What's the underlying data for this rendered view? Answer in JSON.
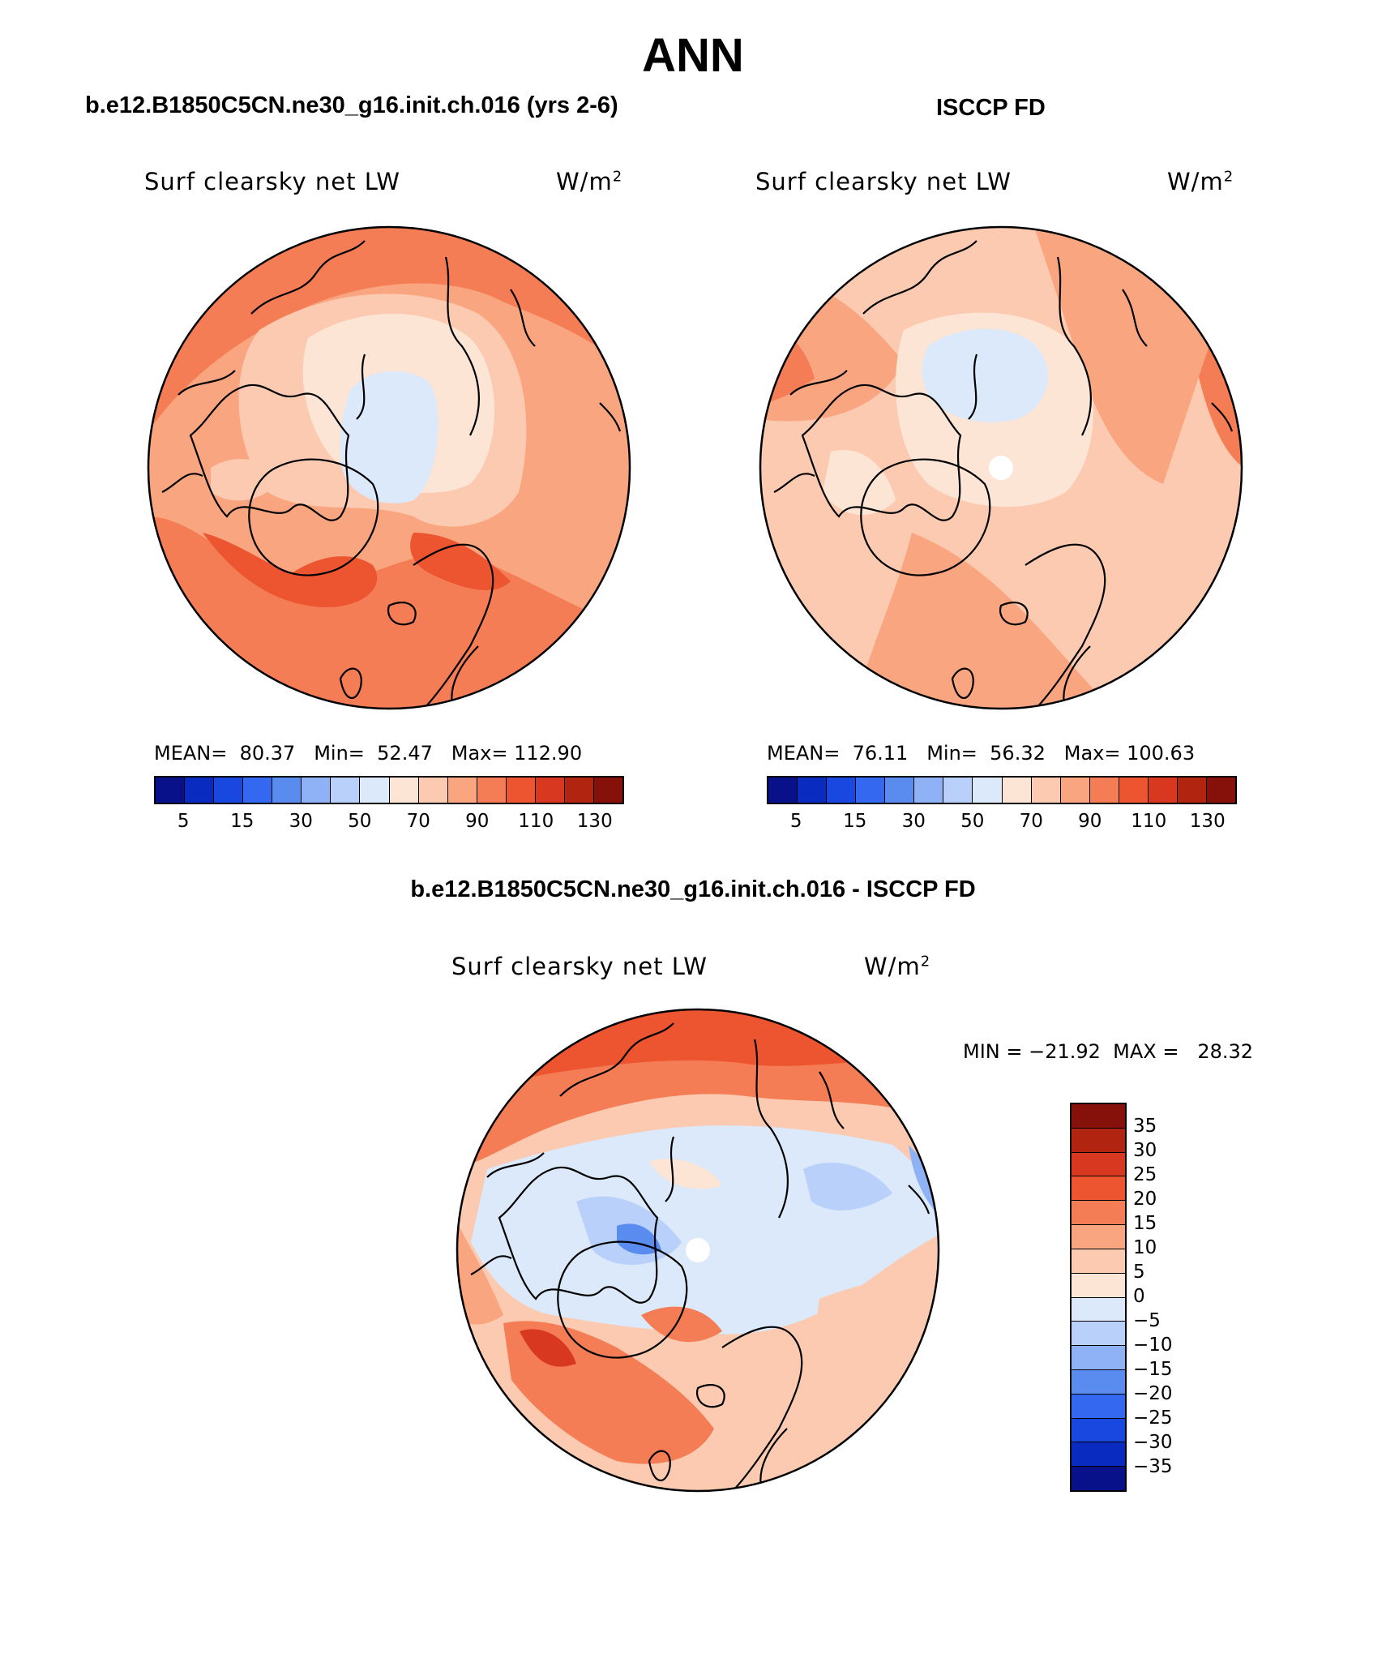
{
  "figure": {
    "title": "ANN",
    "subtitle": "b.e12.B1850C5CN.ne30_g16.init.ch.016 - ISCCP FD"
  },
  "panels": [
    {
      "case_label": "b.e12.B1850C5CN.ne30_g16.init.ch.016 (yrs 2-6)",
      "variable": "Surf clearsky net LW",
      "units_base": "W/m",
      "units_exp": "2",
      "stats": "MEAN=  80.37   Min=  52.47   Max= 112.90"
    },
    {
      "case_label": "ISCCP FD",
      "variable": "Surf clearsky net LW",
      "units_base": "W/m",
      "units_exp": "2",
      "stats": "MEAN=  76.11   Min=  56.32   Max= 100.63"
    },
    {
      "variable": "Surf clearsky net LW",
      "units_base": "W/m",
      "units_exp": "2",
      "stats": "MIN = −21.92  MAX =   28.32"
    }
  ],
  "map_data": {
    "projection": "north polar stereographic",
    "levels_abs": [
      5,
      15,
      30,
      50,
      70,
      90,
      110,
      130
    ],
    "colors_abs": [
      "#08108a",
      "#0a2bbf",
      "#1848e0",
      "#3468f0",
      "#5a8cf0",
      "#8fb2f6",
      "#b9d1fa",
      "#dbe9fb",
      "#fde5d5",
      "#fccab0",
      "#f9a57f",
      "#f47d55",
      "#ec5530",
      "#d8381f",
      "#b02410",
      "#86100a"
    ],
    "levels_diff": [
      "35",
      "30",
      "25",
      "20",
      "15",
      "10",
      "5",
      "0",
      "−5",
      "−10",
      "−15",
      "−20",
      "−25",
      "−30",
      "−35"
    ],
    "colors_diff": [
      "#86100a",
      "#b02410",
      "#d8381f",
      "#ec5530",
      "#f47d55",
      "#f9a57f",
      "#fccab0",
      "#fde5d5",
      "#dbe9fb",
      "#b9d1fa",
      "#8fb2f6",
      "#5a8cf0",
      "#3468f0",
      "#1848e0",
      "#0a2bbf",
      "#08108a"
    ]
  }
}
